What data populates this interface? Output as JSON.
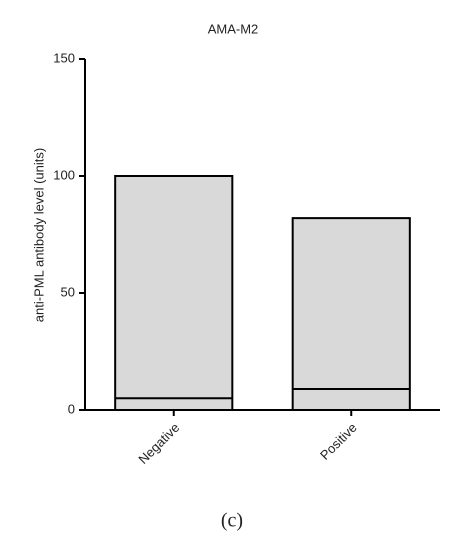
{
  "chart_data": {
    "type": "floating-bar",
    "title": "AMA-M2",
    "y_label": "anti-PML antibody level (units)",
    "categories": [
      "Negative",
      "Positive"
    ],
    "values": [
      100,
      82
    ],
    "inner_lines": [
      5,
      9
    ],
    "color": "#d9d9d9",
    "ylim": [
      0,
      150
    ],
    "yticks": [
      0,
      50,
      100,
      150
    ]
  },
  "caption": "(c)"
}
